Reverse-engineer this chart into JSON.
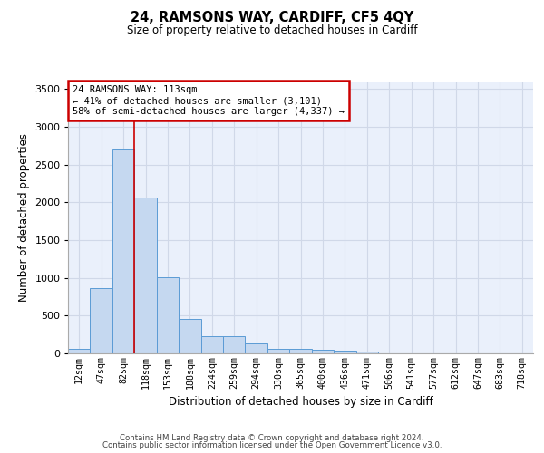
{
  "title_line1": "24, RAMSONS WAY, CARDIFF, CF5 4QY",
  "title_line2": "Size of property relative to detached houses in Cardiff",
  "xlabel": "Distribution of detached houses by size in Cardiff",
  "ylabel": "Number of detached properties",
  "footer_line1": "Contains HM Land Registry data © Crown copyright and database right 2024.",
  "footer_line2": "Contains public sector information licensed under the Open Government Licence v3.0.",
  "bin_labels": [
    "12sqm",
    "47sqm",
    "82sqm",
    "118sqm",
    "153sqm",
    "188sqm",
    "224sqm",
    "259sqm",
    "294sqm",
    "330sqm",
    "365sqm",
    "400sqm",
    "436sqm",
    "471sqm",
    "506sqm",
    "541sqm",
    "577sqm",
    "612sqm",
    "647sqm",
    "683sqm",
    "718sqm"
  ],
  "bar_values": [
    55,
    860,
    2700,
    2060,
    1010,
    460,
    230,
    230,
    130,
    65,
    55,
    50,
    40,
    25,
    0,
    0,
    0,
    0,
    0,
    0,
    0
  ],
  "bar_color": "#c5d8f0",
  "bar_edge_color": "#5b9bd5",
  "grid_color": "#d0d8e8",
  "background_color": "#eaf0fb",
  "property_line_x": 3.0,
  "annotation_text_line1": "24 RAMSONS WAY: 113sqm",
  "annotation_text_line2": "← 41% of detached houses are smaller (3,101)",
  "annotation_text_line3": "58% of semi-detached houses are larger (4,337) →",
  "annotation_box_color": "#ffffff",
  "annotation_border_color": "#cc0000",
  "property_line_color": "#cc0000",
  "ylim": [
    0,
    3600
  ],
  "yticks": [
    0,
    500,
    1000,
    1500,
    2000,
    2500,
    3000,
    3500
  ]
}
